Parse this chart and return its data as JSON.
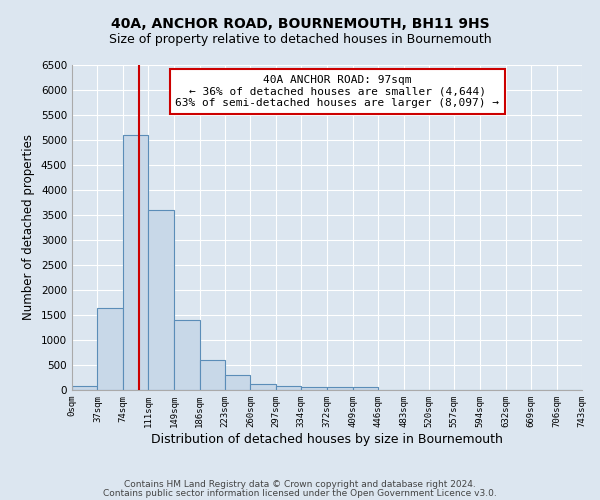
{
  "title": "40A, ANCHOR ROAD, BOURNEMOUTH, BH11 9HS",
  "subtitle": "Size of property relative to detached houses in Bournemouth",
  "xlabel": "Distribution of detached houses by size in Bournemouth",
  "ylabel": "Number of detached properties",
  "bar_color": "#c8d8e8",
  "bar_edge_color": "#5b8db8",
  "bin_edges": [
    0,
    37,
    74,
    111,
    149,
    186,
    223,
    260,
    297,
    334,
    372,
    409,
    446,
    483,
    520,
    557,
    594,
    632,
    669,
    706,
    743
  ],
  "bar_heights": [
    75,
    1650,
    5100,
    3600,
    1400,
    600,
    300,
    130,
    80,
    65,
    55,
    55,
    5,
    3,
    3,
    3,
    3,
    3,
    3,
    3
  ],
  "property_size": 97,
  "vline_color": "#cc0000",
  "annotation_line1": "40A ANCHOR ROAD: 97sqm",
  "annotation_line2": "← 36% of detached houses are smaller (4,644)",
  "annotation_line3": "63% of semi-detached houses are larger (8,097) →",
  "annotation_box_color": "#ffffff",
  "annotation_border_color": "#cc0000",
  "ylim": [
    0,
    6500
  ],
  "yticks": [
    0,
    500,
    1000,
    1500,
    2000,
    2500,
    3000,
    3500,
    4000,
    4500,
    5000,
    5500,
    6000,
    6500
  ],
  "footer1": "Contains HM Land Registry data © Crown copyright and database right 2024.",
  "footer2": "Contains public sector information licensed under the Open Government Licence v3.0.",
  "background_color": "#dce6f0",
  "grid_color": "#ffffff",
  "title_fontsize": 10,
  "subtitle_fontsize": 9
}
